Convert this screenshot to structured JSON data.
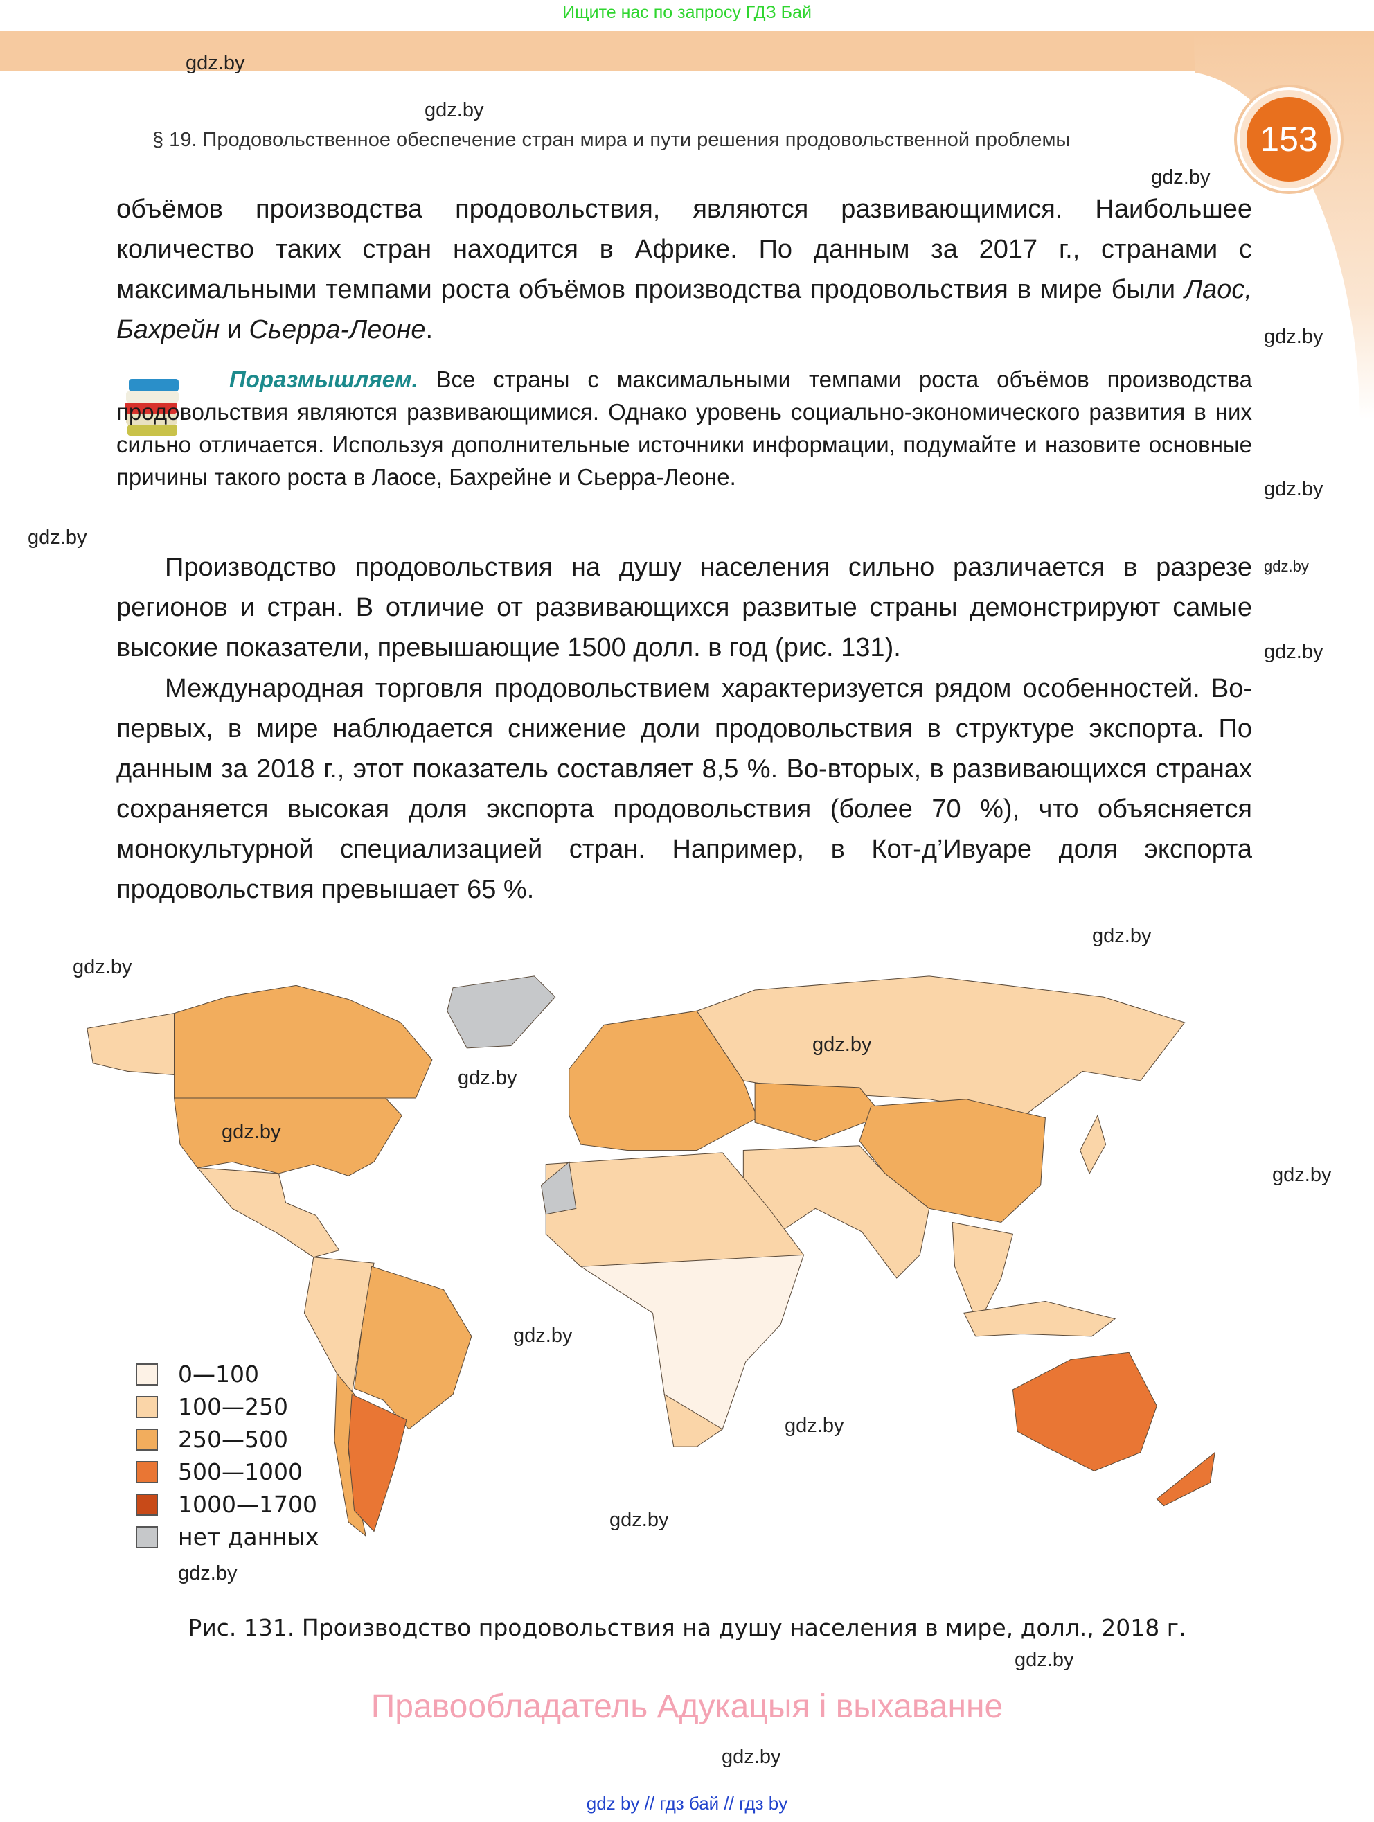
{
  "top_note": "Ищите нас по запросу ГДЗ Бай",
  "watermark": "gdz.by",
  "header": {
    "section": "§ 19. Продовольственное обеспечение стран мира и пути решения продовольственной проблемы",
    "page_number": "153"
  },
  "paragraph1": {
    "text": "объёмов производства продовольствия, являются развивающимися. Наибольшее количество таких стран находится в Африке. По данным за 2017 г., странами с максимальными темпами роста объёмов производства продовольствия в мире были ",
    "italic": "Лаос, Бахрейн",
    "mid": " и ",
    "italic2": "Сьерра-Леоне",
    "end": "."
  },
  "think": {
    "lead": "Поразмышляем.",
    "text": " Все страны с максимальными темпами роста объёмов производства продовольствия являются развивающимися. Однако уровень социально-экономического развития в них сильно отличается. Используя дополнительные источники информации, подумайте и назовите основные причины такого роста в Лаосе, Бахрейне и Сьерра-Леоне."
  },
  "paragraph2": "Производство продовольствия на душу населения сильно различается в разрезе регионов и стран. В отличие от развивающихся развитые страны демонстрируют самые высокие показатели, превышающие 1500 долл. в год (рис. 131).",
  "paragraph3": "Международная торговля продовольствием характеризуется рядом особенностей. Во-первых, в мире наблюдается снижение доли продовольствия в структуре экспорта. По данным за 2018 г., этот показатель составляет 8,5 %. Во-вторых, в развивающихся странах сохраняется высокая доля экспорта продовольствия (более 70 %), что объясняется монокультурной специализацией стран. Например, в Кот-д’Ивуаре доля экспорта продовольствия превышает 65 %.",
  "legend": [
    {
      "label": "0—100",
      "color": "#fdf2e6"
    },
    {
      "label": "100—250",
      "color": "#fad5a8"
    },
    {
      "label": "250—500",
      "color": "#f2ad5d"
    },
    {
      "label": "500—1000",
      "color": "#e97634"
    },
    {
      "label": "1000—1700",
      "color": "#c84a18"
    },
    {
      "label": "нет данных",
      "color": "#c6c8ca"
    }
  ],
  "caption": "Рис. 131. Производство продовольствия на душу населения в мире, долл., 2018 г.",
  "copyright": "Правообладатель Адукацыя і выхаванне",
  "bottom_links": "gdz by  //  гдз бай  //  гдз by"
}
